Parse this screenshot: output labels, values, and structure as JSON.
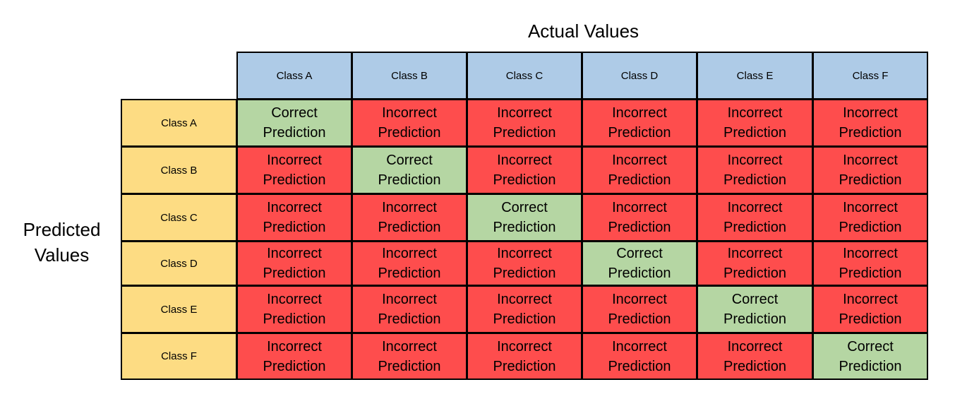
{
  "titles": {
    "actual": "Actual Values",
    "predicted_line1": "Predicted",
    "predicted_line2": "Values"
  },
  "classes": [
    "Class A",
    "Class B",
    "Class C",
    "Class D",
    "Class E",
    "Class F"
  ],
  "labels": {
    "correct_line1": "Correct",
    "incorrect_line1": "Incorrect",
    "line2": "Prediction"
  },
  "colors": {
    "actual_header": "#aecbe7",
    "predicted_header": "#fddc83",
    "correct": "#b5d6a3",
    "incorrect": "#fe4d4d",
    "border": "#000000"
  }
}
